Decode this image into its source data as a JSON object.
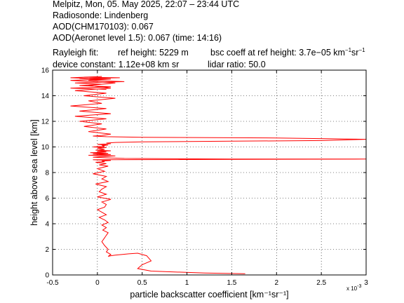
{
  "header": {
    "line1": "Melpitz, Mon, 05. May 2025, 22:07 – 23:44 UTC",
    "line2": "Radiosonde: Lindenberg",
    "line3": "AOD(CHM170103): 0.067",
    "line4": "AOD(Aeronet level 1.5): 0.067   (time: 14:16)",
    "rayleigh_label": "Rayleigh fit:",
    "ref_height": "ref height: 5229 m",
    "bsc_coeff_prefix": "bsc coeff at ref height: 3.7e−05 km",
    "bsc_coeff_mid": "sr",
    "device_constant": "device constant: 1.12e+08 km sr",
    "lidar_ratio": "lidar ratio: 50.0"
  },
  "chart_data": {
    "type": "line",
    "xlabel": "particle backscatter coefficient [km⁻¹sr⁻¹]",
    "ylabel": "height above sea level [km]",
    "x_exponent_label": "x 10",
    "x_exponent_value": "-3",
    "xlim": [
      -0.5,
      3.0
    ],
    "ylim": [
      0,
      16
    ],
    "xticks": [
      "-0.5",
      "0",
      "0.5",
      "1",
      "1.5",
      "2",
      "2.5",
      "3"
    ],
    "yticks": [
      "0",
      "2",
      "4",
      "6",
      "8",
      "10",
      "12",
      "14",
      "16"
    ],
    "grid": true,
    "line_color": "#ff0000",
    "series": [
      {
        "x": [
          1.65,
          1.2,
          0.6,
          0.45,
          0.5,
          0.6,
          0.55,
          0.45,
          0.35,
          0.2,
          0.15,
          0.12,
          0.15,
          0.1,
          0.12,
          0.08,
          0.05,
          0.08,
          0.1,
          0.12,
          0.06,
          0.1,
          0.05,
          0.12,
          0.08,
          0.02,
          0.1,
          0.05,
          0.0,
          0.08,
          0.1,
          0.05,
          0.15,
          0.0,
          0.1,
          0.02,
          0.05,
          0.1,
          -0.02,
          0.12,
          0.05,
          0.1,
          -0.05,
          0.08,
          0.0,
          0.12,
          0.02,
          0.1,
          -0.02,
          0.08,
          0.05,
          0.15,
          -0.05,
          3.0,
          1.5,
          0.3,
          0.1,
          -0.05,
          0.05,
          0.2,
          -0.1,
          0.15,
          -0.05,
          0.12,
          -0.08,
          0.1,
          0.0,
          0.15,
          -0.02,
          0.08,
          0.05,
          0.0,
          0.1,
          -0.05,
          0.08,
          0.05,
          0.12,
          0.0,
          0.15,
          0.1,
          0.2,
          0.5,
          1.5,
          2.5,
          3.0,
          2.0,
          0.5,
          0.1,
          -0.05,
          0.05,
          0.15,
          -0.1,
          0.1,
          -0.15,
          0.05,
          -0.2,
          0.1,
          -0.25,
          0.15,
          -0.2,
          0.1,
          -0.3,
          0.05,
          -0.1,
          0.2,
          -0.15,
          0.1,
          -0.25,
          0.15,
          -0.1,
          0.2,
          -0.3,
          0.1,
          -0.2,
          0.25,
          -0.15,
          0.05,
          -0.3,
          0.15,
          -0.1,
          0.3,
          -0.25,
          0.05,
          -0.2,
          0.15,
          -0.3,
          0.1
        ],
        "y": [
          0.1,
          0.15,
          0.3,
          0.5,
          0.8,
          1.1,
          1.5,
          1.7,
          1.65,
          1.55,
          1.5,
          1.45,
          1.6,
          1.8,
          2.0,
          2.3,
          2.6,
          2.9,
          3.1,
          3.3,
          3.5,
          3.7,
          3.9,
          4.1,
          4.3,
          4.5,
          4.7,
          4.9,
          5.1,
          5.3,
          5.5,
          5.7,
          5.9,
          6.1,
          6.3,
          6.5,
          6.7,
          6.9,
          7.1,
          7.3,
          7.5,
          7.7,
          7.9,
          8.1,
          8.3,
          8.5,
          8.6,
          8.7,
          8.8,
          8.85,
          8.9,
          8.95,
          9.0,
          9.05,
          9.05,
          9.1,
          9.15,
          9.2,
          9.25,
          9.3,
          9.35,
          9.4,
          9.45,
          9.5,
          9.55,
          9.6,
          9.65,
          9.7,
          9.75,
          9.8,
          9.85,
          9.9,
          9.95,
          10.0,
          10.05,
          10.1,
          10.15,
          10.2,
          10.25,
          10.3,
          10.35,
          10.4,
          10.45,
          10.5,
          10.6,
          10.7,
          10.75,
          10.8,
          10.85,
          10.9,
          11.0,
          11.2,
          11.4,
          11.6,
          11.8,
          12.0,
          12.2,
          12.4,
          12.6,
          12.8,
          13.0,
          13.2,
          13.4,
          13.6,
          13.8,
          14.0,
          14.2,
          14.4,
          14.6,
          14.8,
          15.0,
          15.2,
          15.3,
          15.35,
          15.4,
          15.45,
          15.5,
          15.4,
          15.3,
          15.2,
          15.1,
          15.0,
          14.9,
          14.8,
          14.7,
          14.6,
          14.5
        ]
      }
    ]
  }
}
